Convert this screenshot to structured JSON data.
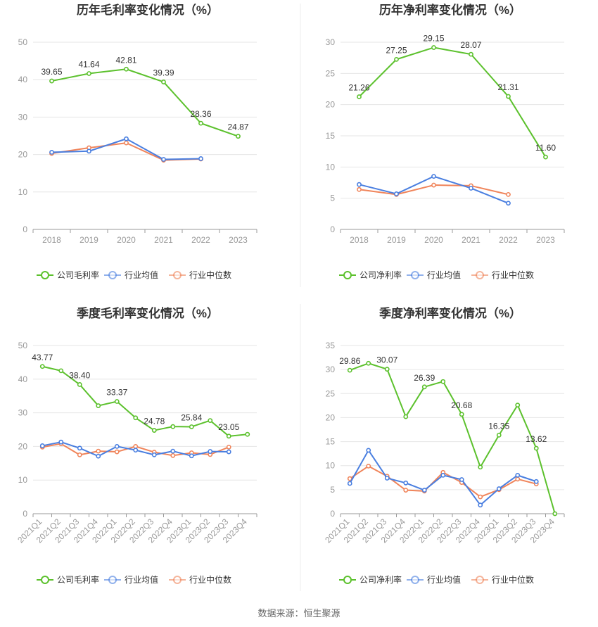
{
  "source": "数据来源：恒生聚源",
  "colors": {
    "company": "#5cc12d",
    "industry_avg": "#4a7fe0",
    "industry_median": "#f0845a",
    "grid": "#e6e6e6",
    "axis": "#999999"
  },
  "chart_data": [
    {
      "type": "line",
      "title": "历年毛利率变化情况（%）",
      "categories": [
        "2018",
        "2019",
        "2020",
        "2021",
        "2022",
        "2023"
      ],
      "ylim": [
        0,
        50
      ],
      "yticks": [
        0,
        10,
        20,
        30,
        40,
        50
      ],
      "grid": true,
      "legend_position": "bottom",
      "series": [
        {
          "name": "公司毛利率",
          "values": [
            39.65,
            41.64,
            42.81,
            39.39,
            28.36,
            24.87
          ],
          "labels": [
            "39.65",
            "41.64",
            "42.81",
            "39.39",
            "28.36",
            "24.87"
          ]
        },
        {
          "name": "行业均值",
          "values": [
            20.6,
            20.9,
            24.2,
            18.7,
            18.9,
            null
          ]
        },
        {
          "name": "行业中位数",
          "values": [
            20.3,
            21.8,
            23.1,
            18.5,
            18.8,
            null
          ]
        }
      ]
    },
    {
      "type": "line",
      "title": "历年净利率变化情况（%）",
      "categories": [
        "2018",
        "2019",
        "2020",
        "2021",
        "2022",
        "2023"
      ],
      "ylim": [
        0,
        30
      ],
      "yticks": [
        0,
        5,
        10,
        15,
        20,
        25,
        30
      ],
      "grid": true,
      "legend_position": "bottom",
      "series": [
        {
          "name": "公司净利率",
          "values": [
            21.26,
            27.25,
            29.15,
            28.07,
            21.31,
            11.6
          ],
          "labels": [
            "21.26",
            "27.25",
            "29.15",
            "28.07",
            "21.31",
            "11.60"
          ]
        },
        {
          "name": "行业均值",
          "values": [
            7.2,
            5.7,
            8.5,
            6.6,
            4.2,
            null
          ]
        },
        {
          "name": "行业中位数",
          "values": [
            6.4,
            5.6,
            7.1,
            7.0,
            5.6,
            null
          ]
        }
      ]
    },
    {
      "type": "line",
      "title": "季度毛利率变化情况（%）",
      "categories": [
        "2021Q1",
        "2021Q2",
        "2021Q3",
        "2021Q4",
        "2022Q1",
        "2022Q2",
        "2022Q3",
        "2022Q4",
        "2023Q1",
        "2023Q2",
        "2023Q3",
        "2023Q4"
      ],
      "ylim": [
        0,
        50
      ],
      "yticks": [
        0,
        10,
        20,
        30,
        40,
        50
      ],
      "grid": true,
      "legend_position": "bottom",
      "series": [
        {
          "name": "公司毛利率",
          "values": [
            43.77,
            42.5,
            38.4,
            32.1,
            33.37,
            28.5,
            24.78,
            25.9,
            25.84,
            27.7,
            23.05,
            23.6
          ],
          "labels": [
            "43.77",
            "",
            "38.40",
            "",
            "33.37",
            "",
            "24.78",
            "",
            "25.84",
            "",
            "23.05",
            ""
          ]
        },
        {
          "name": "行业均值",
          "values": [
            20.2,
            21.3,
            19.5,
            17.1,
            20.0,
            18.9,
            17.5,
            18.6,
            17.2,
            18.5,
            18.4,
            null
          ]
        },
        {
          "name": "行业中位数",
          "values": [
            19.8,
            20.8,
            17.5,
            18.6,
            18.4,
            20.0,
            18.3,
            17.3,
            18.1,
            17.6,
            19.8,
            null
          ]
        }
      ]
    },
    {
      "type": "line",
      "title": "季度净利率变化情况（%）",
      "categories": [
        "2021Q1",
        "2021Q2",
        "2021Q3",
        "2021Q4",
        "2022Q1",
        "2022Q2",
        "2022Q3",
        "2022Q4",
        "2023Q1",
        "2023Q2",
        "2023Q3",
        "2023Q4"
      ],
      "ylim": [
        0,
        35
      ],
      "yticks": [
        0,
        5,
        10,
        15,
        20,
        25,
        30,
        35
      ],
      "grid": true,
      "legend_position": "bottom",
      "series": [
        {
          "name": "公司净利率",
          "values": [
            29.86,
            31.3,
            30.07,
            20.2,
            26.39,
            27.5,
            20.68,
            9.7,
            16.35,
            22.6,
            13.62,
            0.0
          ],
          "labels": [
            "29.86",
            "",
            "30.07",
            "",
            "26.39",
            "",
            "20.68",
            "",
            "16.35",
            "",
            "13.62",
            ""
          ]
        },
        {
          "name": "行业均值",
          "values": [
            6.3,
            13.2,
            7.4,
            6.4,
            4.9,
            8.0,
            7.1,
            1.8,
            5.2,
            8.0,
            6.7,
            null
          ]
        },
        {
          "name": "行业中位数",
          "values": [
            7.3,
            9.9,
            7.8,
            4.9,
            4.7,
            8.6,
            6.5,
            3.5,
            5.0,
            7.2,
            6.2,
            null
          ]
        }
      ]
    }
  ]
}
